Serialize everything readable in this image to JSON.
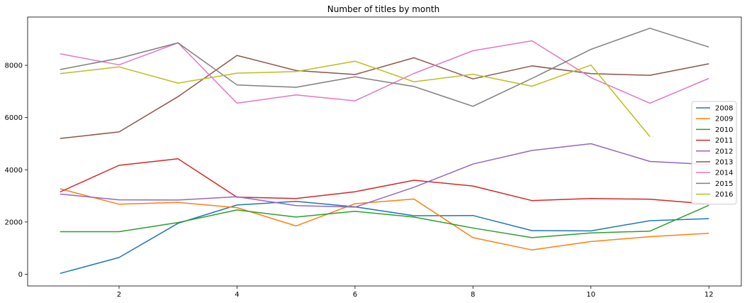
{
  "chart_data": {
    "type": "line",
    "title": "Number of titles by month",
    "xlabel": "",
    "ylabel": "",
    "x": [
      1,
      2,
      3,
      4,
      5,
      6,
      7,
      8,
      9,
      10,
      11,
      12
    ],
    "xlim": [
      0.45,
      12.55
    ],
    "ylim": [
      -450,
      9850
    ],
    "xticks": [
      2,
      4,
      6,
      8,
      10,
      12
    ],
    "yticks": [
      0,
      2000,
      4000,
      6000,
      8000
    ],
    "grid": false,
    "legend_position": "right",
    "series": [
      {
        "name": "2008",
        "color": "#1f77b4",
        "values": [
          30,
          640,
          1950,
          2650,
          2790,
          2580,
          2240,
          2250,
          1670,
          1660,
          2050,
          2130
        ]
      },
      {
        "name": "2009",
        "color": "#ff7f0e",
        "values": [
          3270,
          2680,
          2750,
          2550,
          1850,
          2700,
          2880,
          1400,
          930,
          1250,
          1440,
          1570
        ]
      },
      {
        "name": "2010",
        "color": "#2ca02c",
        "values": [
          1630,
          1630,
          1980,
          2460,
          2190,
          2410,
          2190,
          1770,
          1400,
          1580,
          1650,
          2640
        ]
      },
      {
        "name": "2011",
        "color": "#d62728",
        "values": [
          3150,
          4170,
          4420,
          2950,
          2900,
          3160,
          3600,
          3380,
          2820,
          2900,
          2870,
          2690
        ]
      },
      {
        "name": "2012",
        "color": "#9467bd",
        "values": [
          3070,
          2850,
          2840,
          2970,
          2630,
          2570,
          3330,
          4220,
          4740,
          5000,
          4320,
          4200
        ]
      },
      {
        "name": "2013",
        "color": "#8c564b",
        "values": [
          5200,
          5450,
          6800,
          8380,
          7800,
          7650,
          8290,
          7480,
          7980,
          7680,
          7620,
          8060
        ]
      },
      {
        "name": "2014",
        "color": "#e377c2",
        "values": [
          8440,
          8020,
          8860,
          6550,
          6870,
          6640,
          7690,
          8560,
          8940,
          7530,
          6550,
          7500
        ]
      },
      {
        "name": "2015",
        "color": "#7f7f7f",
        "values": [
          7840,
          8270,
          8860,
          7250,
          7160,
          7560,
          7190,
          6430,
          7500,
          8610,
          9420,
          8700
        ]
      },
      {
        "name": "2016",
        "color": "#bcbd22",
        "values": [
          7680,
          7940,
          7320,
          7700,
          7760,
          8160,
          7370,
          7660,
          7200,
          8010,
          5270,
          null
        ]
      }
    ]
  }
}
